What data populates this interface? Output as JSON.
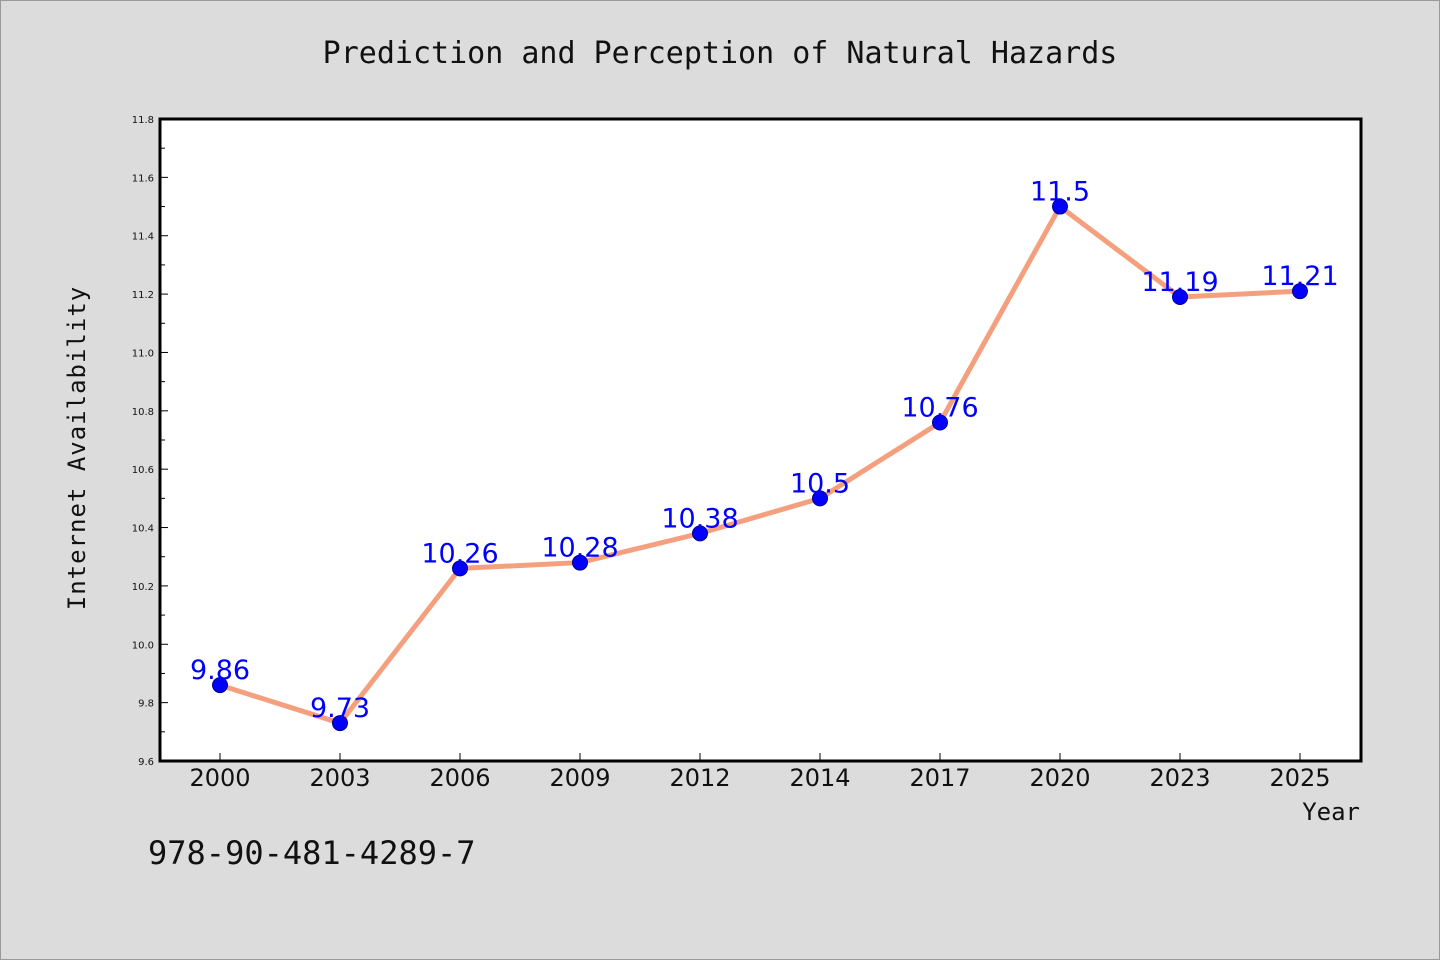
{
  "chart_data": {
    "type": "line",
    "title": "Prediction and Perception of Natural Hazards",
    "xlabel": "Year",
    "ylabel": "Internet Availability",
    "categories": [
      "2000",
      "2003",
      "2006",
      "2009",
      "2012",
      "2014",
      "2017",
      "2020",
      "2023",
      "2025"
    ],
    "series": [
      {
        "values": [
          9.86,
          9.73,
          10.26,
          10.28,
          10.38,
          10.5,
          10.76,
          11.5,
          11.19,
          11.21
        ],
        "data_labels": [
          "9.86",
          "9.73",
          "10.26",
          "10.28",
          "10.38",
          "10.5",
          "10.76",
          "11.5",
          "11.19",
          "11.21"
        ],
        "line_color": "#f4a07e",
        "marker_color": "#0000ff"
      }
    ],
    "ylim": [
      9.6,
      11.8
    ],
    "yticks": [
      "9.6",
      "9.8",
      "10.0",
      "10.2",
      "10.4",
      "10.6",
      "10.8",
      "11.0",
      "11.2",
      "11.4",
      "11.6",
      "11.8"
    ],
    "grid": false,
    "legend": false
  },
  "footnote": "978-90-481-4289-7",
  "colors": {
    "background": "#dcdcdc",
    "plot_area": "#ffffff",
    "line": "#f4a07e",
    "marker": "#0000ff",
    "data_label": "#0000ff"
  }
}
